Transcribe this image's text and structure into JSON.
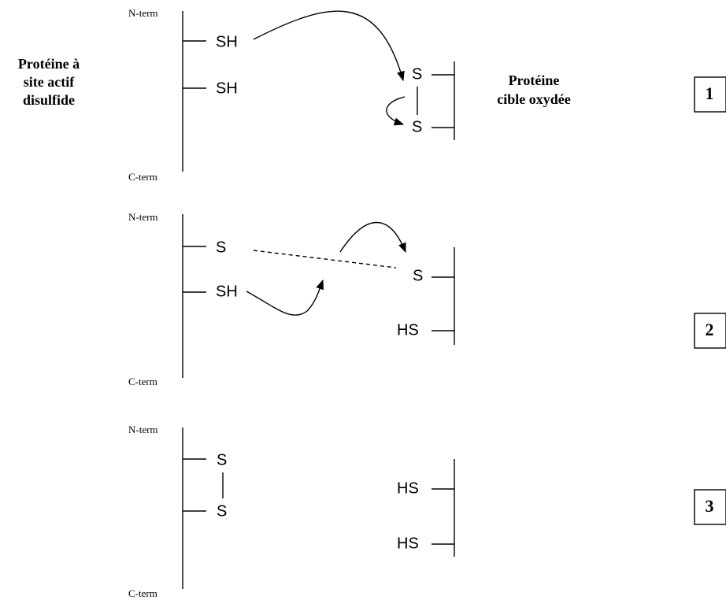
{
  "left_label": [
    "Protéine à",
    "site actif",
    "disulfide"
  ],
  "right_label": [
    "Protéine",
    "cible oxydée"
  ],
  "panels": [
    {
      "step": "1",
      "n_term": "N-term",
      "c_term": "C-term",
      "left_groups": [
        "SH",
        "SH"
      ],
      "right_groups": [
        "S",
        "S"
      ]
    },
    {
      "step": "2",
      "n_term": "N-term",
      "c_term": "C-term",
      "left_groups": [
        "S",
        "SH"
      ],
      "right_groups": [
        "S",
        "HS"
      ]
    },
    {
      "step": "3",
      "n_term": "N-term",
      "c_term": "C-term",
      "left_groups": [
        "S",
        "S"
      ],
      "right_groups": [
        "HS",
        "HS"
      ]
    }
  ]
}
